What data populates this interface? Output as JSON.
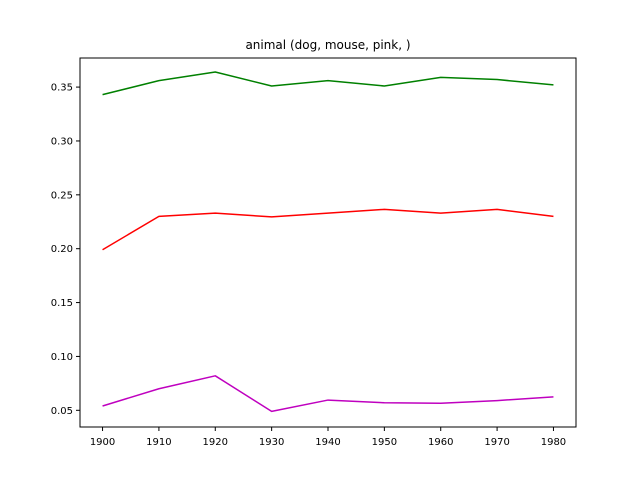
{
  "chart_data": {
    "type": "line",
    "title": "animal (dog, mouse, pink, )",
    "xlabel": "",
    "ylabel": "",
    "x": [
      1900,
      1910,
      1920,
      1930,
      1940,
      1950,
      1960,
      1970,
      1980
    ],
    "xticks": [
      "1900",
      "1910",
      "1920",
      "1930",
      "1940",
      "1950",
      "1960",
      "1970",
      "1980"
    ],
    "yticks": [
      0.05,
      0.1,
      0.15,
      0.2,
      0.25,
      0.3,
      0.35
    ],
    "ytick_labels": [
      "0.05",
      "0.10",
      "0.15",
      "0.20",
      "0.25",
      "0.30",
      "0.35"
    ],
    "xlim": [
      1896,
      1984
    ],
    "ylim": [
      0.0345,
      0.377
    ],
    "grid": false,
    "series": [
      {
        "color": "#008000",
        "values": [
          0.343,
          0.356,
          0.364,
          0.351,
          0.356,
          0.351,
          0.359,
          0.357,
          0.352
        ]
      },
      {
        "color": "#ff0000",
        "values": [
          0.199,
          0.23,
          0.233,
          0.2295,
          0.233,
          0.2365,
          0.233,
          0.2365,
          0.23
        ]
      },
      {
        "color": "#bf00bf",
        "values": [
          0.054,
          0.07,
          0.082,
          0.049,
          0.0595,
          0.057,
          0.0565,
          0.059,
          0.0625
        ]
      }
    ]
  }
}
